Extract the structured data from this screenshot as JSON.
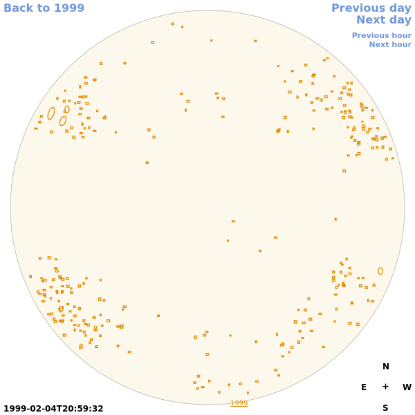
{
  "nav": {
    "back": "Back to 1999",
    "previous_day": "Previous day",
    "next_day": "Next day",
    "previous_hour": "Previous hour",
    "next_hour": "Next hour"
  },
  "compass": {
    "north": "N",
    "east": "E",
    "center": "+",
    "west": "W",
    "south": "S"
  },
  "timestamp": "1999-02-04T20:59:32",
  "year_link": "1999",
  "colors": {
    "disk_fill": "#fdf8ec",
    "disk_edge": "#c9c4b8",
    "feature": "#e08a00",
    "nav_link": "#6f97d9"
  }
}
